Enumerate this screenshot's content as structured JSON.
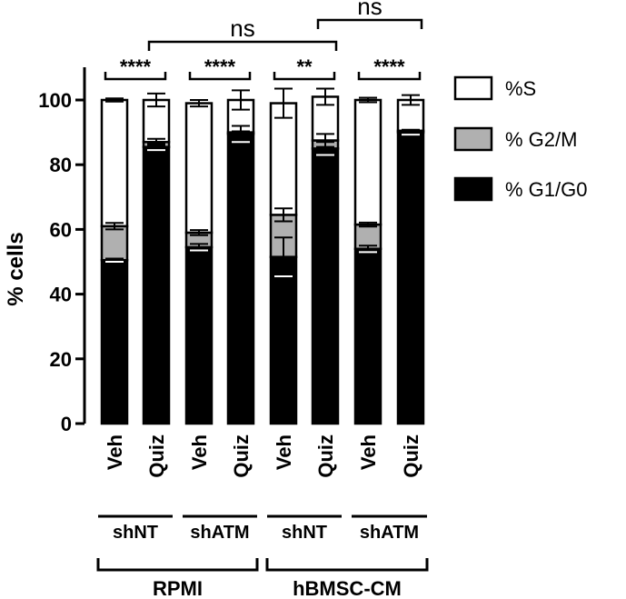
{
  "chart_data": {
    "type": "bar",
    "stacked": true,
    "ylabel": "% cells",
    "ylim": [
      0,
      100
    ],
    "yticks": [
      0,
      20,
      40,
      60,
      80,
      100
    ],
    "categories": [
      "Veh",
      "Quiz",
      "Veh",
      "Quiz",
      "Veh",
      "Quiz",
      "Veh",
      "Quiz"
    ],
    "groups": [
      {
        "label": "shNT",
        "bars": [
          0,
          1
        ]
      },
      {
        "label": "shATM",
        "bars": [
          2,
          3
        ]
      },
      {
        "label": "shNT",
        "bars": [
          4,
          5
        ]
      },
      {
        "label": "shATM",
        "bars": [
          6,
          7
        ]
      }
    ],
    "conditions": [
      {
        "label": "RPMI",
        "bars": [
          0,
          3
        ]
      },
      {
        "label": "hBMSC-CM",
        "bars": [
          4,
          7
        ]
      }
    ],
    "series": [
      {
        "name": "% G1/G0",
        "color": "#000000",
        "values": [
          50.5,
          85.5,
          54.5,
          89.5,
          51.5,
          85.0,
          54.0,
          90.0
        ],
        "errors": [
          0.5,
          1.0,
          1.0,
          2.5,
          6.0,
          2.0,
          1.0,
          0.7
        ]
      },
      {
        "name": "% G2/M",
        "color": "#b0b0b0",
        "values": [
          10.5,
          1.5,
          4.5,
          0.5,
          13.0,
          2.5,
          7.5,
          0.5
        ],
        "errors": [
          1.0,
          1.0,
          0.8,
          0.3,
          2.0,
          2.0,
          0.6,
          0.3
        ]
      },
      {
        "name": "%S",
        "color": "#ffffff",
        "values": [
          39.0,
          13.0,
          40.0,
          10.0,
          34.5,
          13.5,
          38.5,
          9.5
        ],
        "errors": [
          0.5,
          2.0,
          1.0,
          3.0,
          4.5,
          2.5,
          0.7,
          1.5
        ]
      }
    ],
    "legend_order": [
      "%S",
      "% G2/M",
      "% G1/G0"
    ],
    "legend_position": "right",
    "significance": [
      {
        "from": 0,
        "to": 1,
        "label": "****"
      },
      {
        "from": 2,
        "to": 3,
        "label": "****"
      },
      {
        "from": 4,
        "to": 5,
        "label": "**"
      },
      {
        "from": 6,
        "to": 7,
        "label": "****"
      }
    ],
    "comparisons": [
      {
        "from": 1,
        "to": 5,
        "label": "ns"
      },
      {
        "from": 5,
        "to": 7,
        "label": "ns"
      }
    ]
  }
}
